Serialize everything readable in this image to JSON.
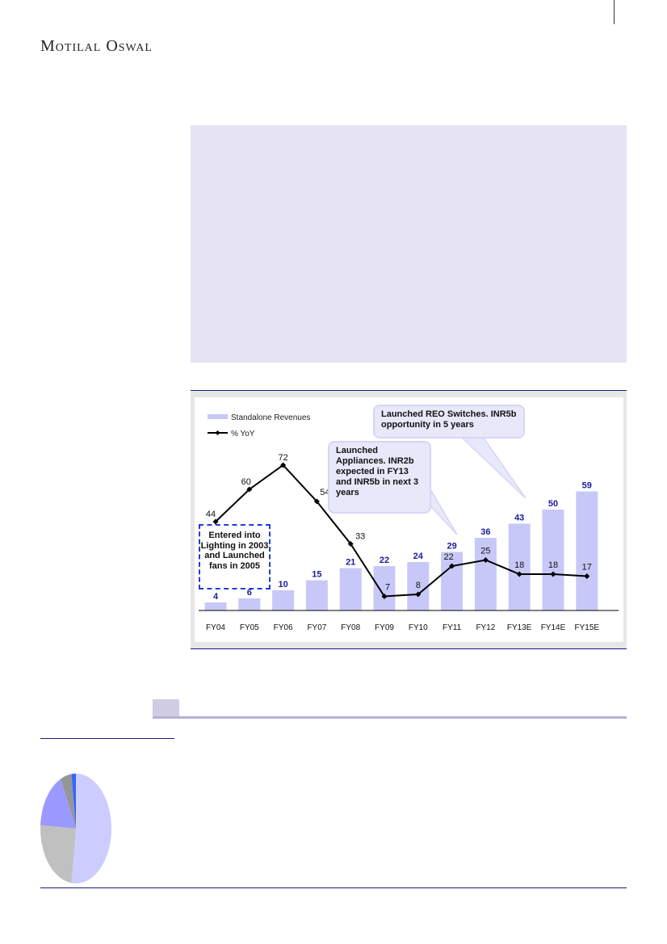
{
  "header": {
    "logo_text": "Motilal Oswal"
  },
  "chart_data": {
    "type": "bar+line",
    "categories": [
      "FY04",
      "FY05",
      "FY06",
      "FY07",
      "FY08",
      "FY09",
      "FY10",
      "FY11",
      "FY12",
      "FY13E",
      "FY14E",
      "FY15E"
    ],
    "series": [
      {
        "name": "Standalone Revenues",
        "type": "bar",
        "values": [
          4,
          6,
          10,
          15,
          21,
          22,
          24,
          29,
          36,
          43,
          50,
          59
        ],
        "color": "#c8c8f8",
        "label_color": "#1a1aa0"
      },
      {
        "name": "% YoY",
        "type": "line",
        "values": [
          44,
          60,
          72,
          54,
          33,
          7,
          8,
          22,
          25,
          18,
          18,
          17
        ],
        "color": "#000000"
      }
    ],
    "annotations": [
      "Launched REO Switches. INR5b opportunity in 5 years",
      "Launched Appliances. INR2b expected in FY13 and INR5b in next 3 years",
      "Entered into Lighting in 2003 and Launched fans in 2005"
    ],
    "legend": "top-left",
    "grid": false
  },
  "pie_chart": {
    "type": "pie",
    "values": [
      52,
      24,
      17,
      5,
      2
    ],
    "colors": [
      "#ccccff",
      "#c0c0c0",
      "#9999ff",
      "#969696",
      "#3366ff"
    ]
  }
}
